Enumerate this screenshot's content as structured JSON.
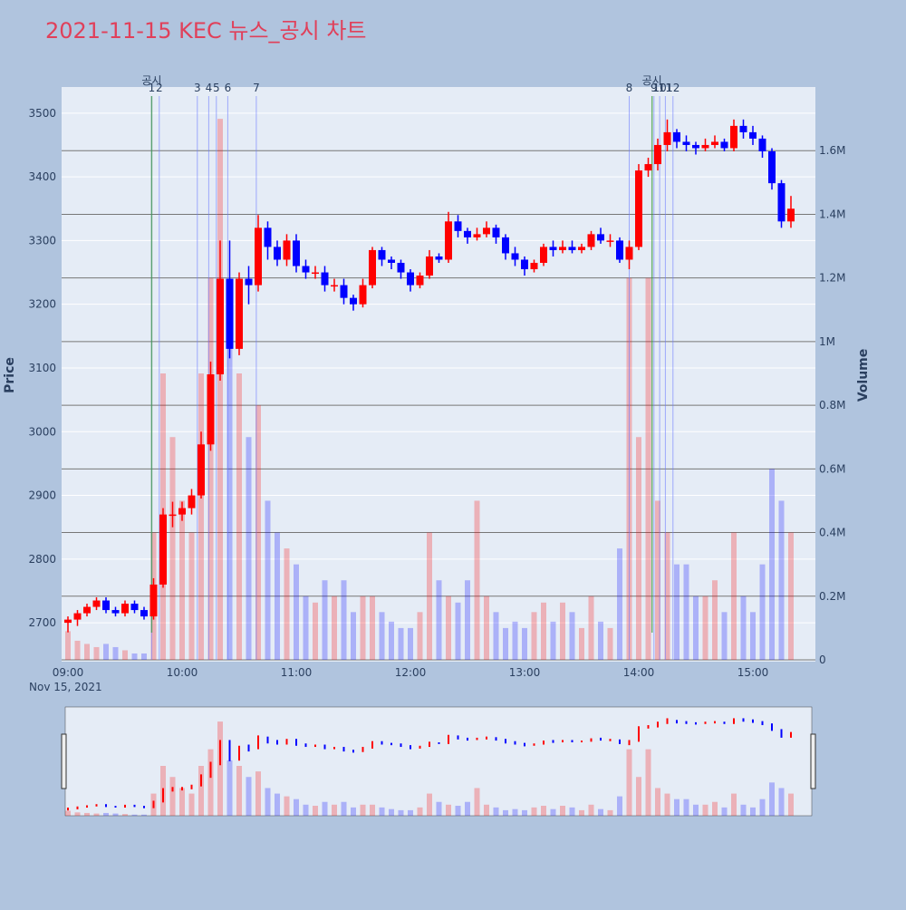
{
  "chart_data": {
    "type": "candlestick",
    "title": "2021-11-15 KEC 뉴스_공시 차트",
    "x": [
      "09:00",
      "09:05",
      "09:10",
      "09:15",
      "09:20",
      "09:25",
      "09:30",
      "09:35",
      "09:40",
      "09:45",
      "09:50",
      "09:55",
      "10:00",
      "10:05",
      "10:10",
      "10:15",
      "10:20",
      "10:25",
      "10:30",
      "10:35",
      "10:40",
      "10:45",
      "10:50",
      "10:55",
      "11:00",
      "11:05",
      "11:10",
      "11:15",
      "11:20",
      "11:25",
      "11:30",
      "11:35",
      "11:40",
      "11:45",
      "11:50",
      "11:55",
      "12:00",
      "12:05",
      "12:10",
      "12:15",
      "12:20",
      "12:25",
      "12:30",
      "12:35",
      "12:40",
      "12:45",
      "12:50",
      "12:55",
      "13:00",
      "13:05",
      "13:10",
      "13:15",
      "13:20",
      "13:25",
      "13:30",
      "13:35",
      "13:40",
      "13:45",
      "13:50",
      "13:55",
      "14:00",
      "14:05",
      "14:10",
      "14:15",
      "14:20",
      "14:25",
      "14:30",
      "14:35",
      "14:40",
      "14:45",
      "14:50",
      "14:55",
      "15:00",
      "15:05",
      "15:10",
      "15:15",
      "15:20"
    ],
    "open": [
      2700,
      2705,
      2715,
      2725,
      2735,
      2720,
      2715,
      2730,
      2720,
      2710,
      2760,
      2870,
      2870,
      2880,
      2900,
      2980,
      3090,
      3240,
      3130,
      3240,
      3230,
      3320,
      3290,
      3270,
      3300,
      3260,
      3250,
      3250,
      3230,
      3230,
      3210,
      3200,
      3230,
      3285,
      3270,
      3265,
      3250,
      3230,
      3245,
      3275,
      3270,
      3330,
      3315,
      3305,
      3310,
      3320,
      3305,
      3280,
      3270,
      3255,
      3265,
      3290,
      3285,
      3290,
      3285,
      3290,
      3310,
      3300,
      3300,
      3270,
      3290,
      3410,
      3420,
      3450,
      3470,
      3455,
      3450,
      3445,
      3450,
      3455,
      3445,
      3480,
      3470,
      3460,
      3440,
      3390,
      3330
    ],
    "high": [
      2710,
      2720,
      2730,
      2740,
      2740,
      2725,
      2735,
      2735,
      2725,
      2770,
      2880,
      2890,
      2890,
      2910,
      3000,
      3110,
      3300,
      3300,
      3250,
      3260,
      3340,
      3330,
      3300,
      3310,
      3310,
      3270,
      3260,
      3260,
      3240,
      3240,
      3215,
      3240,
      3290,
      3290,
      3275,
      3270,
      3255,
      3250,
      3285,
      3280,
      3345,
      3340,
      3320,
      3320,
      3330,
      3325,
      3310,
      3290,
      3275,
      3270,
      3295,
      3300,
      3300,
      3300,
      3295,
      3315,
      3320,
      3310,
      3305,
      3300,
      3420,
      3430,
      3460,
      3490,
      3475,
      3465,
      3455,
      3460,
      3465,
      3460,
      3490,
      3490,
      3480,
      3465,
      3445,
      3395,
      3370
    ],
    "low": [
      2685,
      2695,
      2710,
      2720,
      2715,
      2710,
      2710,
      2715,
      2705,
      2705,
      2755,
      2850,
      2860,
      2870,
      2895,
      2970,
      3080,
      3115,
      3120,
      3200,
      3220,
      3270,
      3260,
      3260,
      3250,
      3240,
      3240,
      3220,
      3220,
      3200,
      3190,
      3195,
      3225,
      3260,
      3255,
      3240,
      3220,
      3225,
      3240,
      3265,
      3265,
      3305,
      3295,
      3300,
      3305,
      3295,
      3270,
      3260,
      3245,
      3250,
      3260,
      3275,
      3280,
      3280,
      3280,
      3285,
      3295,
      3290,
      3265,
      3255,
      3285,
      3400,
      3410,
      3440,
      3445,
      3440,
      3435,
      3440,
      3445,
      3440,
      3440,
      3460,
      3450,
      3430,
      3380,
      3320,
      3320
    ],
    "close": [
      2705,
      2715,
      2725,
      2735,
      2720,
      2715,
      2730,
      2720,
      2710,
      2760,
      2870,
      2870,
      2880,
      2900,
      2980,
      3090,
      3240,
      3130,
      3240,
      3230,
      3320,
      3290,
      3270,
      3300,
      3260,
      3250,
      3250,
      3230,
      3230,
      3210,
      3200,
      3230,
      3285,
      3270,
      3265,
      3250,
      3230,
      3245,
      3275,
      3270,
      3330,
      3315,
      3305,
      3310,
      3320,
      3305,
      3280,
      3270,
      3255,
      3265,
      3290,
      3285,
      3290,
      3285,
      3290,
      3310,
      3300,
      3300,
      3270,
      3290,
      3410,
      3420,
      3450,
      3470,
      3455,
      3450,
      3445,
      3450,
      3455,
      3445,
      3480,
      3470,
      3460,
      3440,
      3390,
      3330,
      3350
    ],
    "volume": [
      90000,
      60000,
      50000,
      40000,
      50000,
      40000,
      30000,
      20000,
      20000,
      400000,
      900000,
      700000,
      500000,
      400000,
      900000,
      1200000,
      1700000,
      1000000,
      900000,
      700000,
      800000,
      500000,
      400000,
      350000,
      300000,
      200000,
      180000,
      250000,
      200000,
      250000,
      150000,
      200000,
      200000,
      150000,
      120000,
      100000,
      100000,
      150000,
      400000,
      250000,
      200000,
      180000,
      250000,
      500000,
      200000,
      150000,
      100000,
      120000,
      100000,
      150000,
      180000,
      120000,
      180000,
      150000,
      100000,
      200000,
      120000,
      100000,
      350000,
      1200000,
      700000,
      1200000,
      500000,
      400000,
      300000,
      300000,
      200000,
      200000,
      250000,
      150000,
      400000,
      200000,
      150000,
      300000,
      600000,
      500000,
      400000
    ],
    "up_color": "#ff0000",
    "down_color": "#0000ff",
    "ylabel": "Price",
    "y2label": "Volume",
    "ylim": [
      2639,
      3541
    ],
    "yticks": [
      2700,
      2800,
      2900,
      3000,
      3100,
      3200,
      3300,
      3400,
      3500
    ],
    "y2lim": [
      0,
      1800000
    ],
    "y2ticks": [
      0,
      {
        "value": 200000,
        "label": "0.2M"
      },
      {
        "value": 400000,
        "label": "0.4M"
      },
      {
        "value": 600000,
        "label": "0.6M"
      },
      {
        "value": 800000,
        "label": "0.8M"
      },
      {
        "value": 1000000,
        "label": "1M"
      },
      {
        "value": 1200000,
        "label": "1.2M"
      },
      {
        "value": 1400000,
        "label": "1.4M"
      },
      {
        "value": 1600000,
        "label": "1.6M"
      }
    ],
    "xticks": [
      "09:00",
      "10:00",
      "11:00",
      "12:00",
      "13:00",
      "14:00",
      "15:00"
    ],
    "xdate": "Nov 15, 2021",
    "news": [
      {
        "label": "1",
        "time": "09:44"
      },
      {
        "label": "2",
        "time": "09:48"
      },
      {
        "label": "3",
        "time": "10:08"
      },
      {
        "label": "4",
        "time": "10:14"
      },
      {
        "label": "5",
        "time": "10:18"
      },
      {
        "label": "6",
        "time": "10:24"
      },
      {
        "label": "7",
        "time": "10:39"
      },
      {
        "label": "8",
        "time": "13:55"
      },
      {
        "label": "9",
        "time": "14:08"
      },
      {
        "label": "10",
        "time": "14:11"
      },
      {
        "label": "11",
        "time": "14:14"
      },
      {
        "label": "12",
        "time": "14:18"
      }
    ],
    "disclosures": [
      {
        "label": "공시",
        "time": "09:44"
      },
      {
        "label": "공시",
        "time": "14:07"
      }
    ],
    "grid": true
  }
}
